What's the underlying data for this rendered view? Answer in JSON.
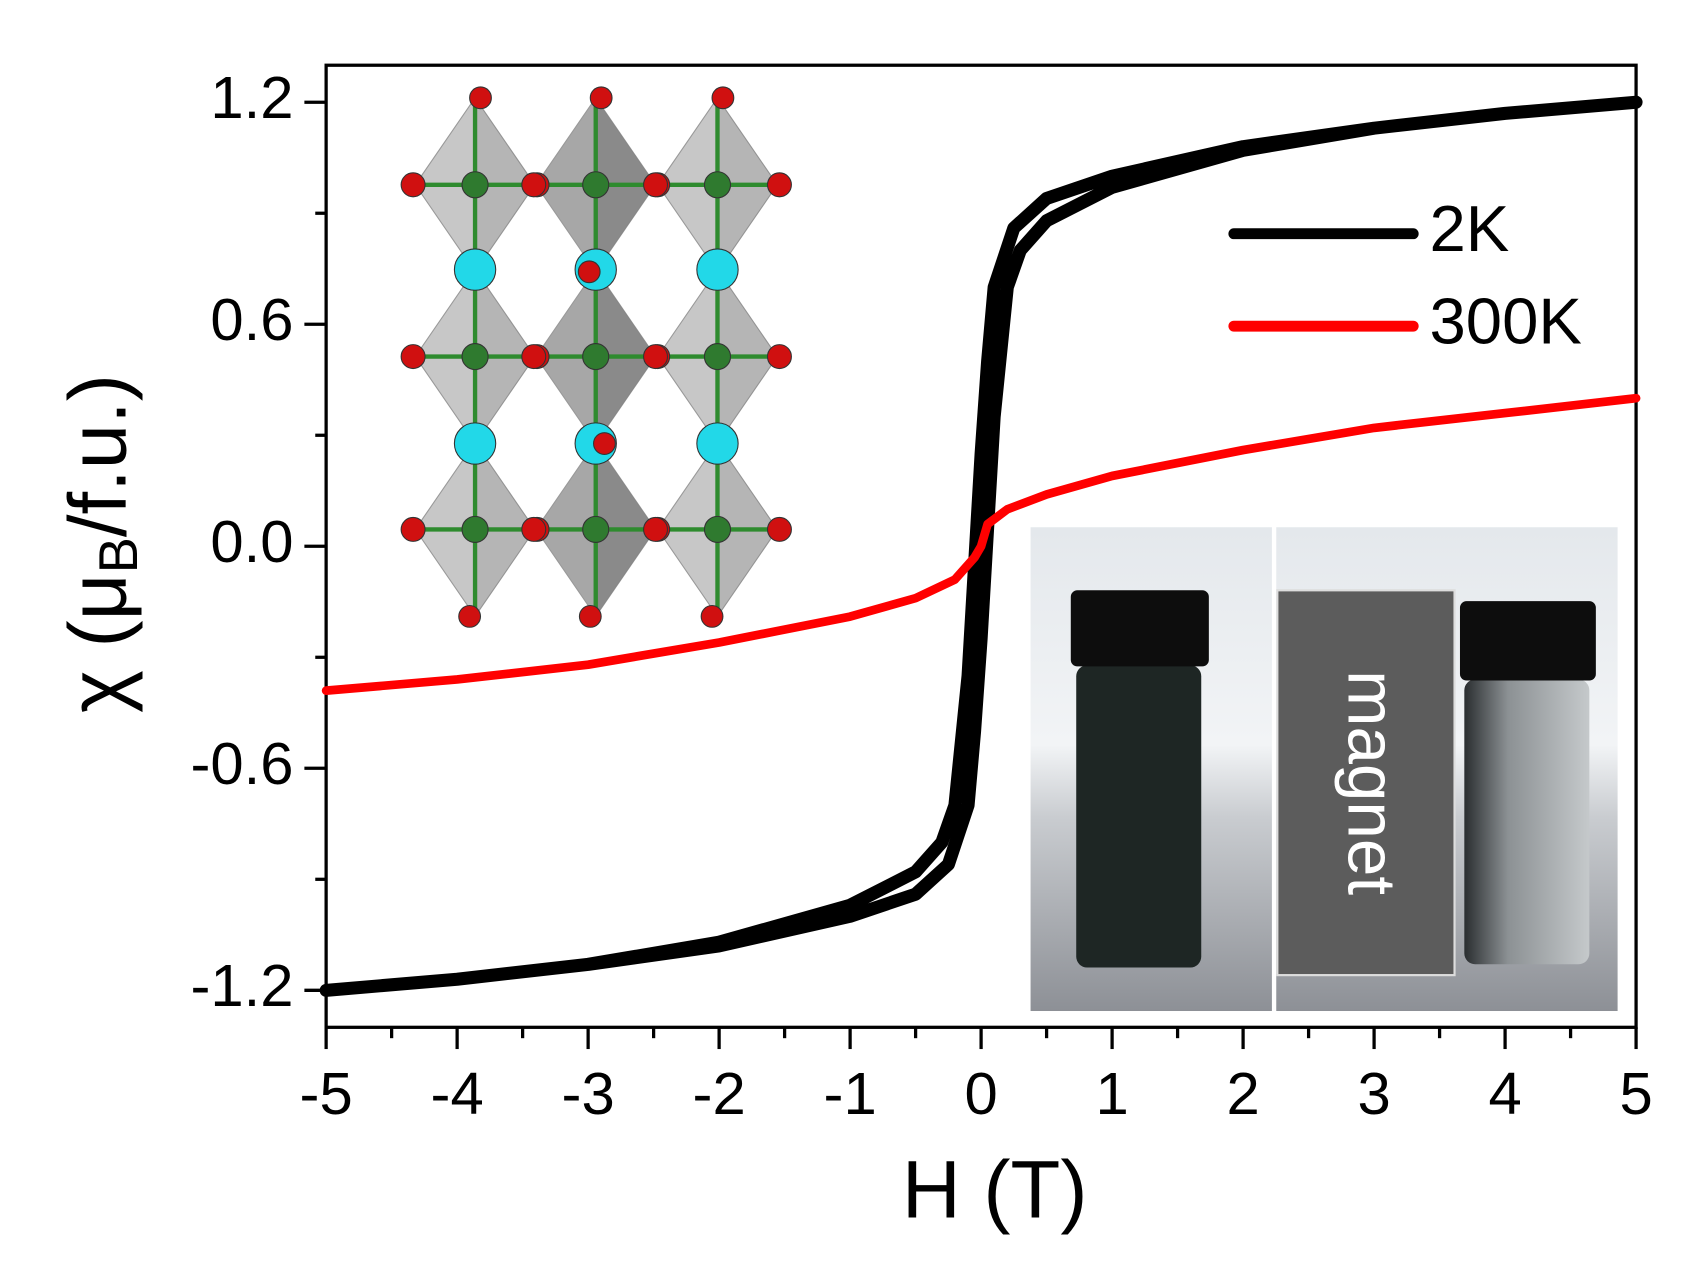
{
  "chart_data": {
    "type": "line",
    "xlabel": "H (T)",
    "ylabel": {
      "main": "χ (μ",
      "sub": "B",
      "end": "/f.u.)"
    },
    "xlim": [
      -5,
      5
    ],
    "xticks": [
      -5,
      -4,
      -3,
      -2,
      -1,
      0,
      1,
      2,
      3,
      4,
      5
    ],
    "ylim": [
      -1.3,
      1.3
    ],
    "yticks": [
      -1.2,
      -0.6,
      {
        "value": 0,
        "label": "0.0"
      },
      0.6,
      1.2
    ],
    "legend": "upper right",
    "annotations": [
      "magnet"
    ],
    "series": [
      {
        "name": "2K",
        "color": "#000000",
        "x": [
          5,
          4,
          3,
          2,
          1,
          0.5,
          0.25,
          0.1,
          0.05,
          0,
          -0.05,
          -0.1,
          -0.2,
          -0.3,
          -0.5,
          -1,
          -2,
          -3,
          -4,
          -5,
          -5,
          -4,
          -3,
          -2,
          -1,
          -0.5,
          -0.25,
          -0.1,
          -0.05,
          0,
          0.05,
          0.1,
          0.2,
          0.3,
          0.5,
          1,
          2,
          3,
          4,
          5
        ],
        "values": [
          1.2,
          1.17,
          1.13,
          1.08,
          1.0,
          0.94,
          0.86,
          0.7,
          0.5,
          0.25,
          -0.05,
          -0.35,
          -0.7,
          -0.8,
          -0.88,
          -0.97,
          -1.07,
          -1.13,
          -1.17,
          -1.2,
          -1.2,
          -1.17,
          -1.13,
          -1.08,
          -1.0,
          -0.94,
          -0.86,
          -0.7,
          -0.5,
          -0.25,
          0.05,
          0.35,
          0.7,
          0.8,
          0.88,
          0.97,
          1.07,
          1.13,
          1.17,
          1.2
        ]
      },
      {
        "name": "300K",
        "color": "#ff0000",
        "x": [
          -5,
          -4,
          -3,
          -2,
          -1,
          -0.5,
          -0.2,
          -0.05,
          0,
          0.05,
          0.2,
          0.5,
          1,
          2,
          3,
          4,
          5
        ],
        "values": [
          -0.39,
          -0.36,
          -0.32,
          -0.26,
          -0.19,
          -0.14,
          -0.09,
          -0.03,
          0,
          0.06,
          0.1,
          0.14,
          0.19,
          0.26,
          0.32,
          0.36,
          0.4
        ]
      }
    ]
  }
}
